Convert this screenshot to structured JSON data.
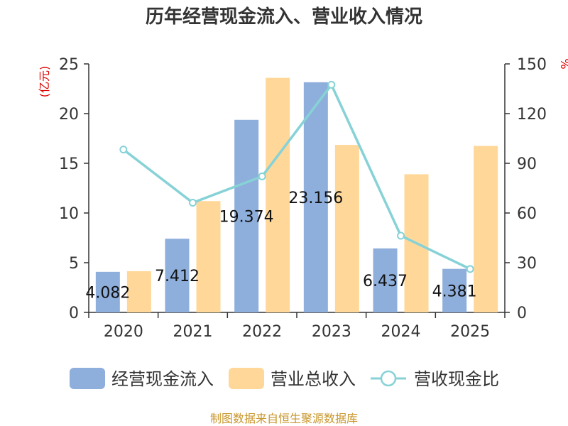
{
  "chart_data": {
    "type": "bar",
    "title": "历年经营现金流入、营业收入情况",
    "categories": [
      "2020",
      "2021",
      "2022",
      "2023",
      "2024",
      "2025"
    ],
    "series": [
      {
        "name": "经营现金流入",
        "type": "bar",
        "axis": "left",
        "color": "#8eaedb",
        "values": [
          4.082,
          7.412,
          19.374,
          23.156,
          6.437,
          4.381
        ],
        "labels": [
          "4.082",
          "7.412",
          "19.374",
          "23.156",
          "6.437",
          "4.381"
        ]
      },
      {
        "name": "营业总收入",
        "type": "bar",
        "axis": "left",
        "color": "#ffd899",
        "values": [
          4.15,
          11.2,
          23.6,
          16.85,
          13.9,
          16.75
        ]
      },
      {
        "name": "营收现金比",
        "type": "line",
        "axis": "right",
        "color": "#86d2d6",
        "values": [
          98.3,
          66.2,
          82.1,
          137.4,
          46.3,
          26.2
        ]
      }
    ],
    "y_left": {
      "unit": "(亿元)",
      "ylim": [
        0,
        25
      ],
      "ticks": [
        0,
        5,
        10,
        15,
        20,
        25
      ]
    },
    "y_right": {
      "unit": "%",
      "ylim": [
        0,
        150
      ],
      "ticks": [
        0,
        30,
        60,
        90,
        120,
        150
      ]
    },
    "grid": false,
    "legend": "bottom"
  },
  "footer": {
    "source": "制图数据来自恒生聚源数据库"
  }
}
